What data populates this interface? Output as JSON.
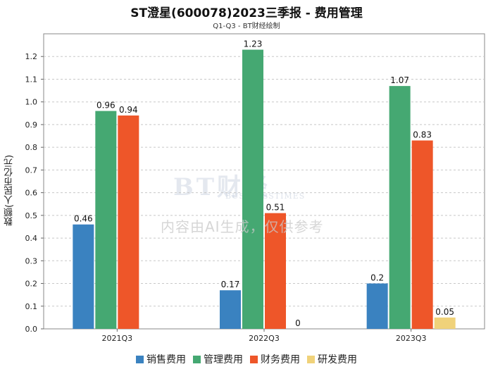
{
  "header": {
    "title": "ST澄星(600078)2023三季报 - 费用管理",
    "subtitle": "Q1-Q3 - BT财经绘制"
  },
  "watermark": {
    "brand": "BT财经",
    "brand_en": "BUSINESSTIMES",
    "notice": "内容由AI生成，仅供参考"
  },
  "chart_data": {
    "type": "bar",
    "title": "ST澄星(600078)2023三季报 - 费用管理",
    "subtitle": "Q1-Q3 - BT财经绘制",
    "xlabel": "",
    "ylabel": "数额(人民币亿元)",
    "ylim": [
      0,
      1.3
    ],
    "yticks": [
      "0.0",
      "0.1",
      "0.2",
      "0.3",
      "0.4",
      "0.5",
      "0.6",
      "0.7",
      "0.8",
      "0.9",
      "1.0",
      "1.1",
      "1.2"
    ],
    "grid": true,
    "legend_position": "bottom",
    "categories": [
      "2021Q3",
      "2022Q3",
      "2023Q3"
    ],
    "series": [
      {
        "name": "销售费用",
        "color": "#3a82c0",
        "values": [
          0.46,
          0.17,
          0.2
        ],
        "labels": [
          "0.46",
          "0.17",
          "0.2"
        ]
      },
      {
        "name": "管理费用",
        "color": "#45a872",
        "values": [
          0.96,
          1.23,
          1.07
        ],
        "labels": [
          "0.96",
          "1.23",
          "1.07"
        ]
      },
      {
        "name": "财务费用",
        "color": "#ee5629",
        "values": [
          0.94,
          0.51,
          0.83
        ],
        "labels": [
          "0.94",
          "0.51",
          "0.83"
        ]
      },
      {
        "name": "研发费用",
        "color": "#f0d27a",
        "values": [
          null,
          0,
          0.05
        ],
        "labels": [
          "",
          "0",
          "0.05"
        ]
      }
    ]
  }
}
